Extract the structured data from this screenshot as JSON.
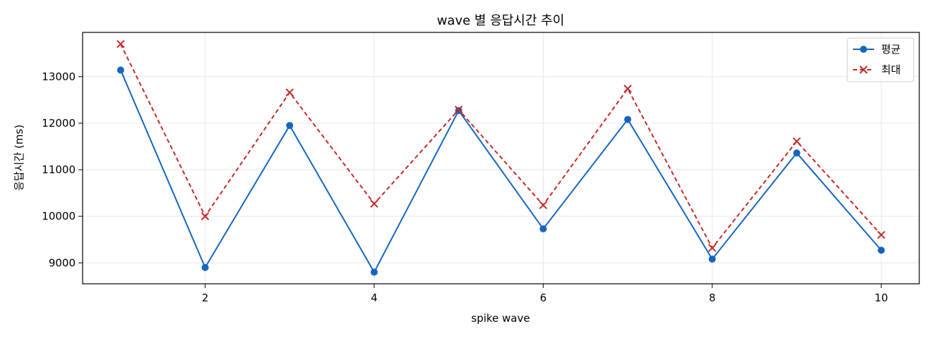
{
  "chart_data": {
    "type": "line",
    "title": "wave 별 응답시간 추이",
    "xlabel": "spike wave",
    "ylabel": "응답시간 (ms)",
    "x": [
      1,
      2,
      3,
      4,
      5,
      6,
      7,
      8,
      9,
      10
    ],
    "xlim": [
      0.55,
      10.45
    ],
    "ylim": [
      8550,
      13950
    ],
    "xticks": [
      2,
      4,
      6,
      8,
      10
    ],
    "yticks": [
      9000,
      10000,
      11000,
      12000,
      13000
    ],
    "grid": true,
    "legend_position": "top-right",
    "series": [
      {
        "name": "평균",
        "values": [
          13140,
          8900,
          11950,
          8800,
          12270,
          9730,
          12080,
          9080,
          11360,
          9270
        ],
        "color": "#1565c0",
        "line_style": "solid",
        "marker": "circle"
      },
      {
        "name": "최대",
        "values": [
          13700,
          10000,
          12660,
          10270,
          12290,
          10240,
          12740,
          9320,
          11610,
          9600
        ],
        "color": "#c62828",
        "line_style": "dashed",
        "marker": "x"
      }
    ]
  }
}
